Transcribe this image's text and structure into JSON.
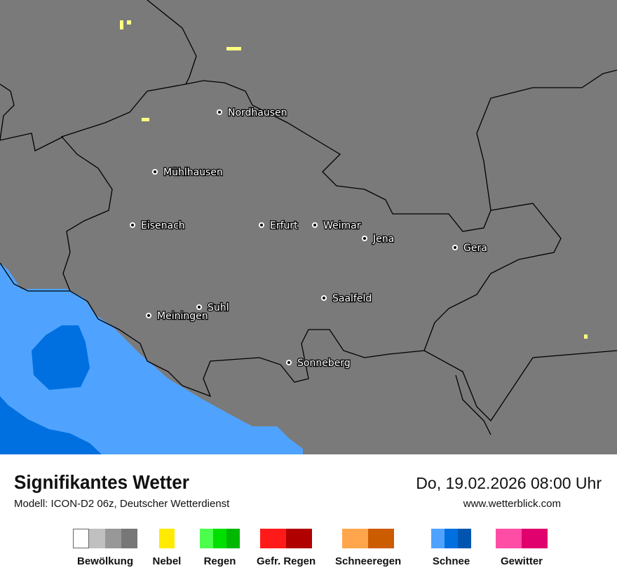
{
  "header": {
    "title": "Signifikantes Wetter",
    "model": "Modell: ICON-D2 06z, Deutscher Wetterdienst",
    "datetime": "Do, 19.02.2026 08:00 Uhr",
    "website": "www.wetterblick.com"
  },
  "map": {
    "background": "#7a7a7a",
    "colors": {
      "snow_light": "#4fa3ff",
      "snow_medium": "#0070e0",
      "fog": "#ffff80"
    },
    "cities": [
      {
        "name": "Nordhausen"
      },
      {
        "name": "Mühlhausen"
      },
      {
        "name": "Eisenach"
      },
      {
        "name": "Erfurt"
      },
      {
        "name": "Weimar"
      },
      {
        "name": "Jena"
      },
      {
        "name": "Gera"
      },
      {
        "name": "Saalfeld"
      },
      {
        "name": "Suhl"
      },
      {
        "name": "Meiningen"
      },
      {
        "name": "Sonneberg"
      }
    ]
  },
  "legend": [
    {
      "label": "Bewölkung",
      "colors": [
        "#ffffff",
        "#c0c0c0",
        "#989898",
        "#777777"
      ]
    },
    {
      "label": "Nebel",
      "colors": [
        "#ffea00"
      ]
    },
    {
      "label": "Regen",
      "colors": [
        "#4cff4c",
        "#00e000",
        "#00b800"
      ]
    },
    {
      "label": "Gefr. Regen",
      "colors": [
        "#ff1a1a",
        "#b00000"
      ]
    },
    {
      "label": "Schneeregen",
      "colors": [
        "#ffa64c",
        "#cc5c00"
      ]
    },
    {
      "label": "Schnee",
      "colors": [
        "#4fa3ff",
        "#0070e0",
        "#0055b0"
      ]
    },
    {
      "label": "Gewitter",
      "colors": [
        "#ff4da6",
        "#e0006e"
      ]
    }
  ]
}
